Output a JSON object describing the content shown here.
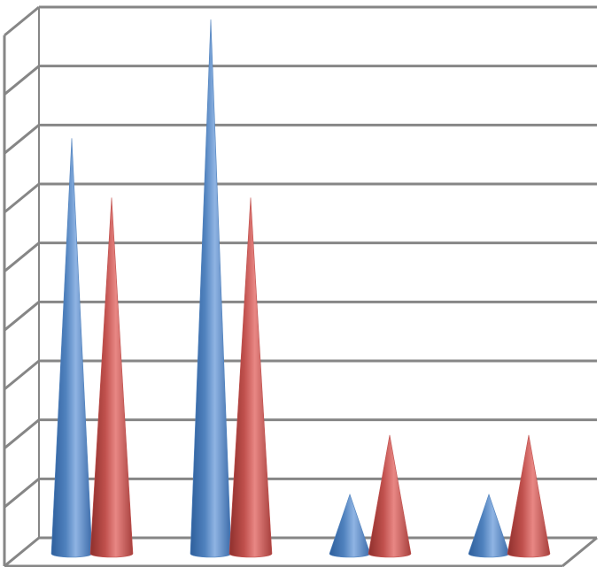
{
  "chart_data": {
    "type": "bar",
    "shape": "cone-3d",
    "categories": [
      "",
      "",
      "",
      ""
    ],
    "series": [
      {
        "values": [
          7,
          9,
          1,
          1
        ]
      },
      {
        "values": [
          6,
          6,
          2,
          2
        ]
      }
    ],
    "ylim": [
      0,
      9
    ],
    "grid": true,
    "legend": "none",
    "title": "",
    "xlabel": "",
    "ylabel": ""
  },
  "colors": {
    "series_1": "#4f81bd",
    "series_2": "#c0504d",
    "grid": "#868686"
  }
}
